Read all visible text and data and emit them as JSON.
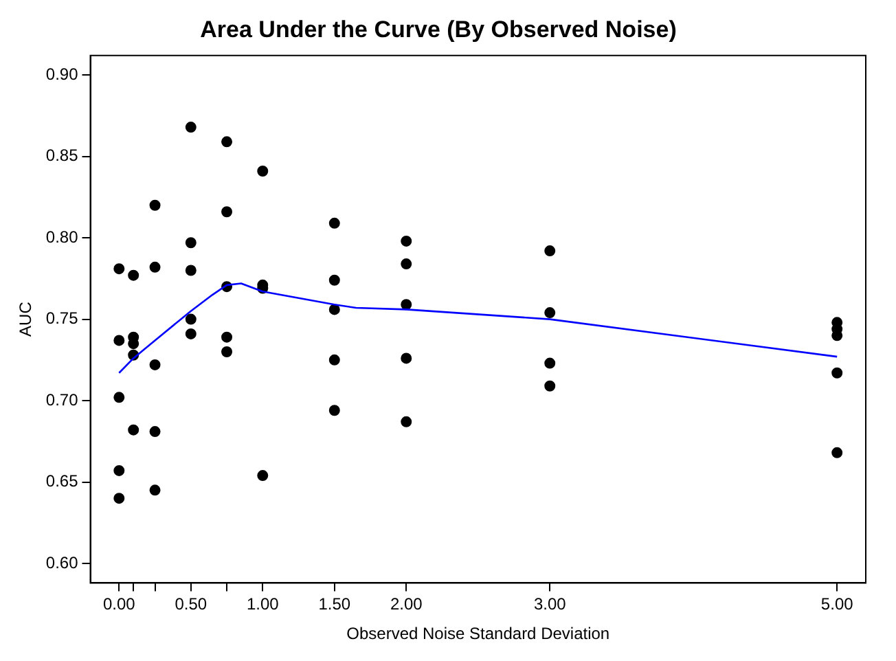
{
  "chart_data": {
    "type": "scatter",
    "title": "Area Under the Curve (By Observed Noise)",
    "xlabel": "Observed Noise Standard Deviation",
    "ylabel": "AUC",
    "xlim": [
      -0.2,
      5.2
    ],
    "ylim": [
      0.588,
      0.912
    ],
    "xticks": [
      {
        "value": 0,
        "label": "0.00"
      },
      {
        "value": 0.1,
        "label": null
      },
      {
        "value": 0.25,
        "label": null
      },
      {
        "value": 0.5,
        "label": "0.50"
      },
      {
        "value": 0.75,
        "label": null
      },
      {
        "value": 1,
        "label": "1.00"
      },
      {
        "value": 1.5,
        "label": "1.50"
      },
      {
        "value": 2,
        "label": "2.00"
      },
      {
        "value": 3,
        "label": "3.00"
      },
      {
        "value": 5,
        "label": "5.00"
      }
    ],
    "yticks": [
      {
        "value": 0.6,
        "label": "0.60"
      },
      {
        "value": 0.65,
        "label": "0.65"
      },
      {
        "value": 0.7,
        "label": "0.70"
      },
      {
        "value": 0.75,
        "label": "0.75"
      },
      {
        "value": 0.8,
        "label": "0.80"
      },
      {
        "value": 0.85,
        "label": "0.85"
      },
      {
        "value": 0.9,
        "label": "0.90"
      }
    ],
    "grid": false,
    "legend": false,
    "marker": "circle",
    "series": [
      {
        "color": "#000000",
        "x": [
          0,
          0,
          0,
          0,
          0,
          0.1,
          0.1,
          0.1,
          0.1,
          0.1,
          0.25,
          0.25,
          0.25,
          0.25,
          0.25,
          0.5,
          0.5,
          0.5,
          0.5,
          0.5,
          0.75,
          0.75,
          0.75,
          0.75,
          0.75,
          1,
          1,
          1,
          1,
          1.5,
          1.5,
          1.5,
          1.5,
          1.5,
          2,
          2,
          2,
          2,
          2,
          3,
          3,
          3,
          3,
          5,
          5,
          5,
          5,
          5
        ],
        "values": [
          0.781,
          0.737,
          0.702,
          0.657,
          0.64,
          0.777,
          0.739,
          0.735,
          0.728,
          0.682,
          0.82,
          0.782,
          0.722,
          0.681,
          0.645,
          0.868,
          0.797,
          0.78,
          0.75,
          0.741,
          0.859,
          0.816,
          0.77,
          0.739,
          0.73,
          0.841,
          0.771,
          0.769,
          0.654,
          0.809,
          0.774,
          0.756,
          0.725,
          0.694,
          0.798,
          0.784,
          0.759,
          0.726,
          0.687,
          0.792,
          0.754,
          0.723,
          0.709,
          0.748,
          0.744,
          0.74,
          0.717,
          0.668
        ]
      },
      {
        "type": "line",
        "color": "#0000ff",
        "marker": "none",
        "x": [
          0,
          0.1,
          0.25,
          0.5,
          0.65,
          0.75,
          0.85,
          1,
          1.5,
          1.65,
          2,
          3,
          5
        ],
        "values": [
          0.717,
          0.726,
          0.737,
          0.755,
          0.765,
          0.771,
          0.772,
          0.767,
          0.759,
          0.757,
          0.756,
          0.75,
          0.727
        ]
      }
    ]
  }
}
